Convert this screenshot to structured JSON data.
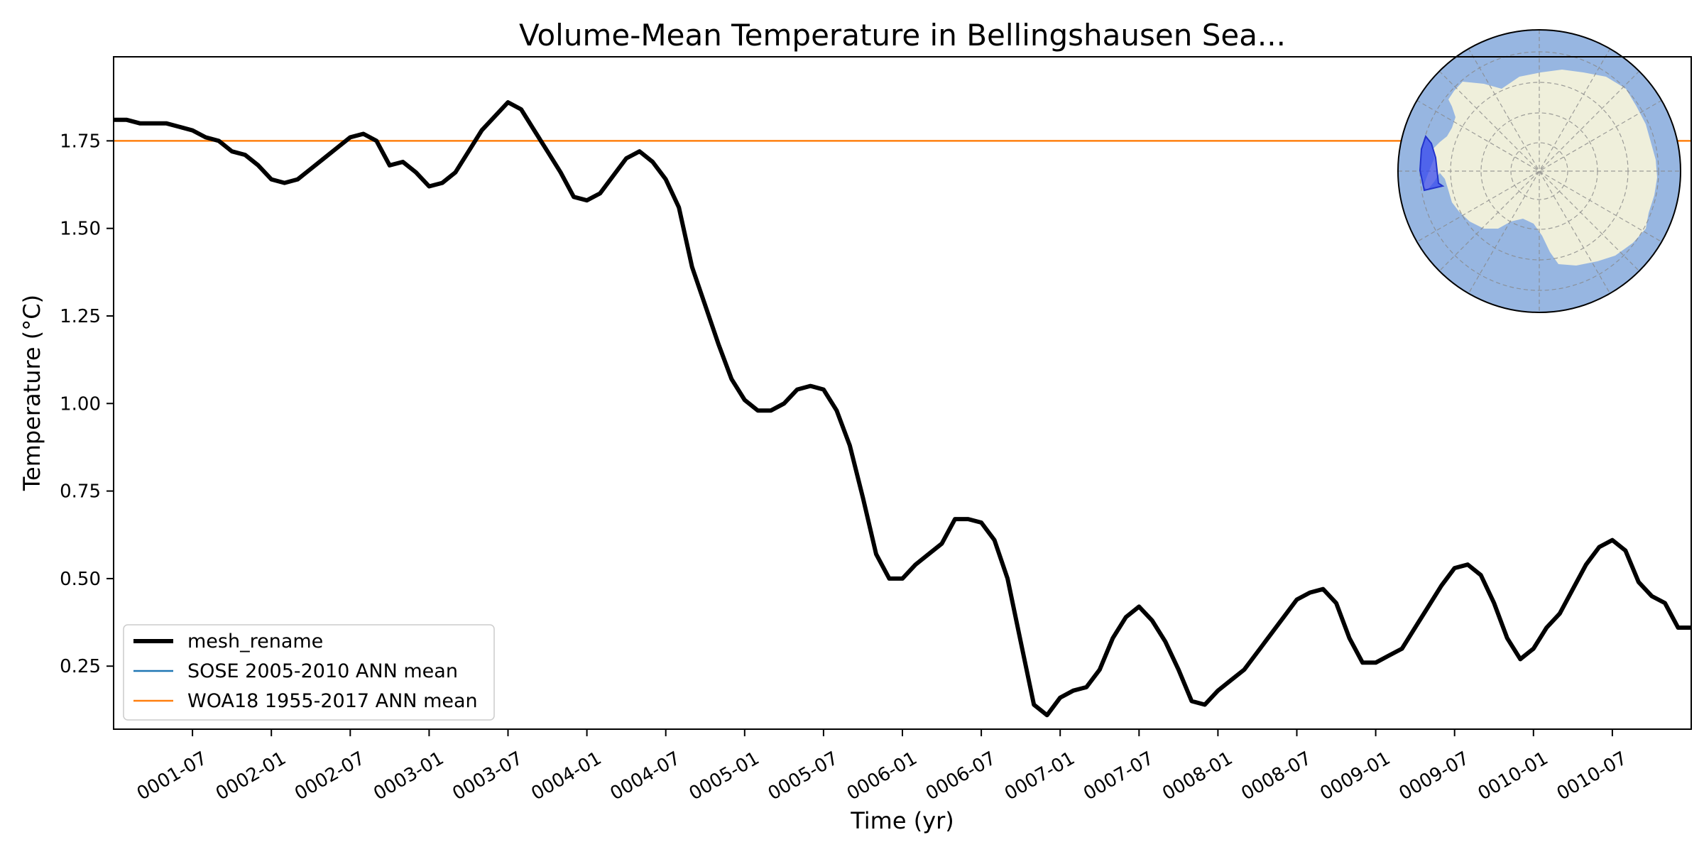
{
  "chart_data": {
    "type": "line",
    "title": "Volume-Mean Temperature in Bellingshausen Sea...",
    "xlabel": "Time (yr)",
    "ylabel": "Temperature (°C)",
    "xlim": [
      "0001-01",
      "0011-01"
    ],
    "ylim": [
      0.07,
      1.99
    ],
    "grid": false,
    "legend_position": "lower-left",
    "yticks": [
      0.25,
      0.5,
      0.75,
      1.0,
      1.25,
      1.5,
      1.75
    ],
    "ytick_labels": [
      "0.25",
      "0.50",
      "0.75",
      "1.00",
      "1.25",
      "1.50",
      "1.75"
    ],
    "xticks": [
      "0001-07",
      "0002-01",
      "0002-07",
      "0003-01",
      "0003-07",
      "0004-01",
      "0004-07",
      "0005-01",
      "0005-07",
      "0006-01",
      "0006-07",
      "0007-01",
      "0007-07",
      "0008-01",
      "0008-07",
      "0009-01",
      "0009-07",
      "0010-01",
      "0010-07"
    ],
    "inset_map": {
      "region": "Bellingshausen Sea",
      "ocean_color": "#97b6e1",
      "land_color": "#efefdb",
      "region_color": "#3344ee"
    },
    "series": [
      {
        "name": "mesh_rename",
        "color": "#000000",
        "x": [
          "0001-01",
          "0001-02",
          "0001-03",
          "0001-04",
          "0001-05",
          "0001-06",
          "0001-07",
          "0001-08",
          "0001-09",
          "0001-10",
          "0001-11",
          "0001-12",
          "0002-01",
          "0002-02",
          "0002-03",
          "0002-04",
          "0002-05",
          "0002-06",
          "0002-07",
          "0002-08",
          "0002-09",
          "0002-10",
          "0002-11",
          "0002-12",
          "0003-01",
          "0003-02",
          "0003-03",
          "0003-04",
          "0003-05",
          "0003-06",
          "0003-07",
          "0003-08",
          "0003-09",
          "0003-10",
          "0003-11",
          "0003-12",
          "0004-01",
          "0004-02",
          "0004-03",
          "0004-04",
          "0004-05",
          "0004-06",
          "0004-07",
          "0004-08",
          "0004-09",
          "0004-10",
          "0004-11",
          "0004-12",
          "0005-01",
          "0005-02",
          "0005-03",
          "0005-04",
          "0005-05",
          "0005-06",
          "0005-07",
          "0005-08",
          "0005-09",
          "0005-10",
          "0005-11",
          "0005-12",
          "0006-01",
          "0006-02",
          "0006-03",
          "0006-04",
          "0006-05",
          "0006-06",
          "0006-07",
          "0006-08",
          "0006-09",
          "0006-10",
          "0006-11",
          "0006-12",
          "0007-01",
          "0007-02",
          "0007-03",
          "0007-04",
          "0007-05",
          "0007-06",
          "0007-07",
          "0007-08",
          "0007-09",
          "0007-10",
          "0007-11",
          "0007-12",
          "0008-01",
          "0008-02",
          "0008-03",
          "0008-04",
          "0008-05",
          "0008-06",
          "0008-07",
          "0008-08",
          "0008-09",
          "0008-10",
          "0008-11",
          "0008-12",
          "0009-01",
          "0009-02",
          "0009-03",
          "0009-04",
          "0009-05",
          "0009-06",
          "0009-07",
          "0009-08",
          "0009-09",
          "0009-10",
          "0009-11",
          "0009-12",
          "0010-01",
          "0010-02",
          "0010-03",
          "0010-04",
          "0010-05",
          "0010-06",
          "0010-07",
          "0010-08",
          "0010-09",
          "0010-10",
          "0010-11",
          "0010-12",
          "0011-01"
        ],
        "values": [
          1.81,
          1.81,
          1.8,
          1.8,
          1.8,
          1.79,
          1.78,
          1.76,
          1.75,
          1.72,
          1.71,
          1.68,
          1.64,
          1.63,
          1.64,
          1.67,
          1.7,
          1.73,
          1.76,
          1.77,
          1.75,
          1.68,
          1.69,
          1.66,
          1.62,
          1.63,
          1.66,
          1.72,
          1.78,
          1.82,
          1.86,
          1.84,
          1.78,
          1.72,
          1.66,
          1.59,
          1.58,
          1.6,
          1.65,
          1.7,
          1.72,
          1.69,
          1.64,
          1.56,
          1.39,
          1.28,
          1.17,
          1.07,
          1.01,
          0.98,
          0.98,
          1.0,
          1.04,
          1.05,
          1.04,
          0.98,
          0.88,
          0.73,
          0.57,
          0.5,
          0.5,
          0.54,
          0.57,
          0.6,
          0.67,
          0.67,
          0.66,
          0.61,
          0.5,
          0.32,
          0.14,
          0.11,
          0.16,
          0.18,
          0.19,
          0.24,
          0.33,
          0.39,
          0.42,
          0.38,
          0.32,
          0.24,
          0.15,
          0.14,
          0.18,
          0.21,
          0.24,
          0.29,
          0.34,
          0.39,
          0.44,
          0.46,
          0.47,
          0.43,
          0.33,
          0.26,
          0.26,
          0.28,
          0.3,
          0.36,
          0.42,
          0.48,
          0.53,
          0.54,
          0.51,
          0.43,
          0.33,
          0.27,
          0.3,
          0.36,
          0.4,
          0.47,
          0.54,
          0.59,
          0.61,
          0.58,
          0.49,
          0.45,
          0.43,
          0.36,
          0.36
        ]
      },
      {
        "name": "SOSE 2005-2010 ANN mean",
        "color": "#1f77b4",
        "values": []
      },
      {
        "name": "WOA18 1955-2017 ANN mean",
        "color": "#ff7f0e",
        "constant": 1.75
      }
    ]
  }
}
